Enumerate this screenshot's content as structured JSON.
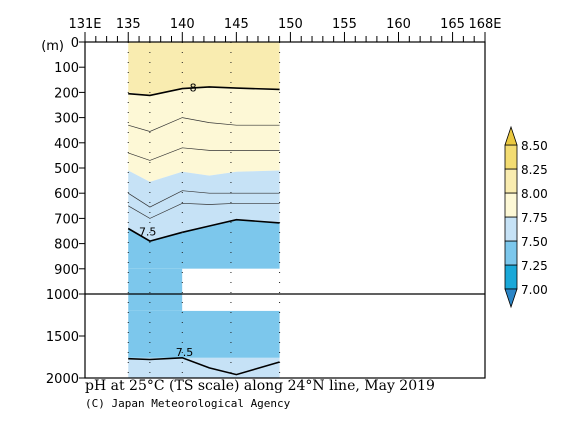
{
  "chart_data": {
    "type": "heatmap",
    "title": "pH at 25°C (TS scale) along 24°N line, May 2019",
    "credit": "(C) Japan Meteorological Agency",
    "x_axis": {
      "ticks": [
        {
          "value": 131,
          "label": "131E"
        },
        {
          "value": 135,
          "label": "135"
        },
        {
          "value": 140,
          "label": "140"
        },
        {
          "value": 145,
          "label": "145"
        },
        {
          "value": 150,
          "label": "150"
        },
        {
          "value": 155,
          "label": "155"
        },
        {
          "value": 160,
          "label": "160"
        },
        {
          "value": 165,
          "label": "165"
        },
        {
          "value": 168,
          "label": "168E"
        }
      ],
      "range": [
        131,
        168
      ]
    },
    "y_axis": {
      "unit_label": "(m)",
      "upper_ticks": [
        0,
        100,
        200,
        300,
        400,
        500,
        600,
        700,
        800,
        900,
        1000
      ],
      "lower_ticks": [
        1000,
        1500,
        2000
      ],
      "break_at": 1000
    },
    "stations_lon": [
      135,
      137,
      140,
      144.5,
      149
    ],
    "section_range": [
      135,
      149
    ],
    "colorbar": {
      "levels": [
        7.0,
        7.25,
        7.5,
        7.75,
        8.0,
        8.25,
        8.5
      ],
      "labels": [
        "7.00",
        "7.25",
        "7.50",
        "7.75",
        "8.00",
        "8.25",
        "8.50"
      ],
      "colors": [
        "#1aa8d8",
        "#7cc7ec",
        "#c6e2f6",
        "#fdf8d6",
        "#f9ecb0",
        "#f3dc72"
      ],
      "extend_colors": {
        "low": "#2b85c6",
        "high": "#eac840"
      }
    },
    "contours": [
      {
        "level": 8,
        "label": "8",
        "depths": [
          205,
          212,
          185,
          178,
          183,
          188
        ]
      },
      {
        "level": 7.5,
        "label": "7.5",
        "depths": [
          740,
          790,
          755,
          730,
          705,
          718
        ]
      },
      {
        "level": 7.5,
        "label": "7.5",
        "depths": [
          1770,
          1780,
          1760,
          1880,
          1960,
          1810
        ]
      }
    ],
    "fills": [
      {
        "level_color": "#f9ecb0",
        "top": [
          0,
          0,
          0,
          0,
          0,
          0
        ],
        "bottom": [
          200,
          210,
          185,
          178,
          183,
          188
        ]
      },
      {
        "level_color": "#fdf8d6",
        "top": [
          200,
          210,
          185,
          178,
          183,
          188
        ],
        "bottom": [
          510,
          555,
          515,
          530,
          515,
          510
        ]
      },
      {
        "level_color": "#c6e2f6",
        "top": [
          510,
          555,
          515,
          530,
          515,
          510
        ],
        "bottom": [
          740,
          790,
          755,
          730,
          705,
          718
        ]
      },
      {
        "level_color": "#7cc7ec",
        "top": [
          740,
          790,
          755,
          730,
          705,
          718
        ],
        "bottom": [
          900,
          900,
          900,
          900,
          900,
          900
        ]
      }
    ]
  }
}
